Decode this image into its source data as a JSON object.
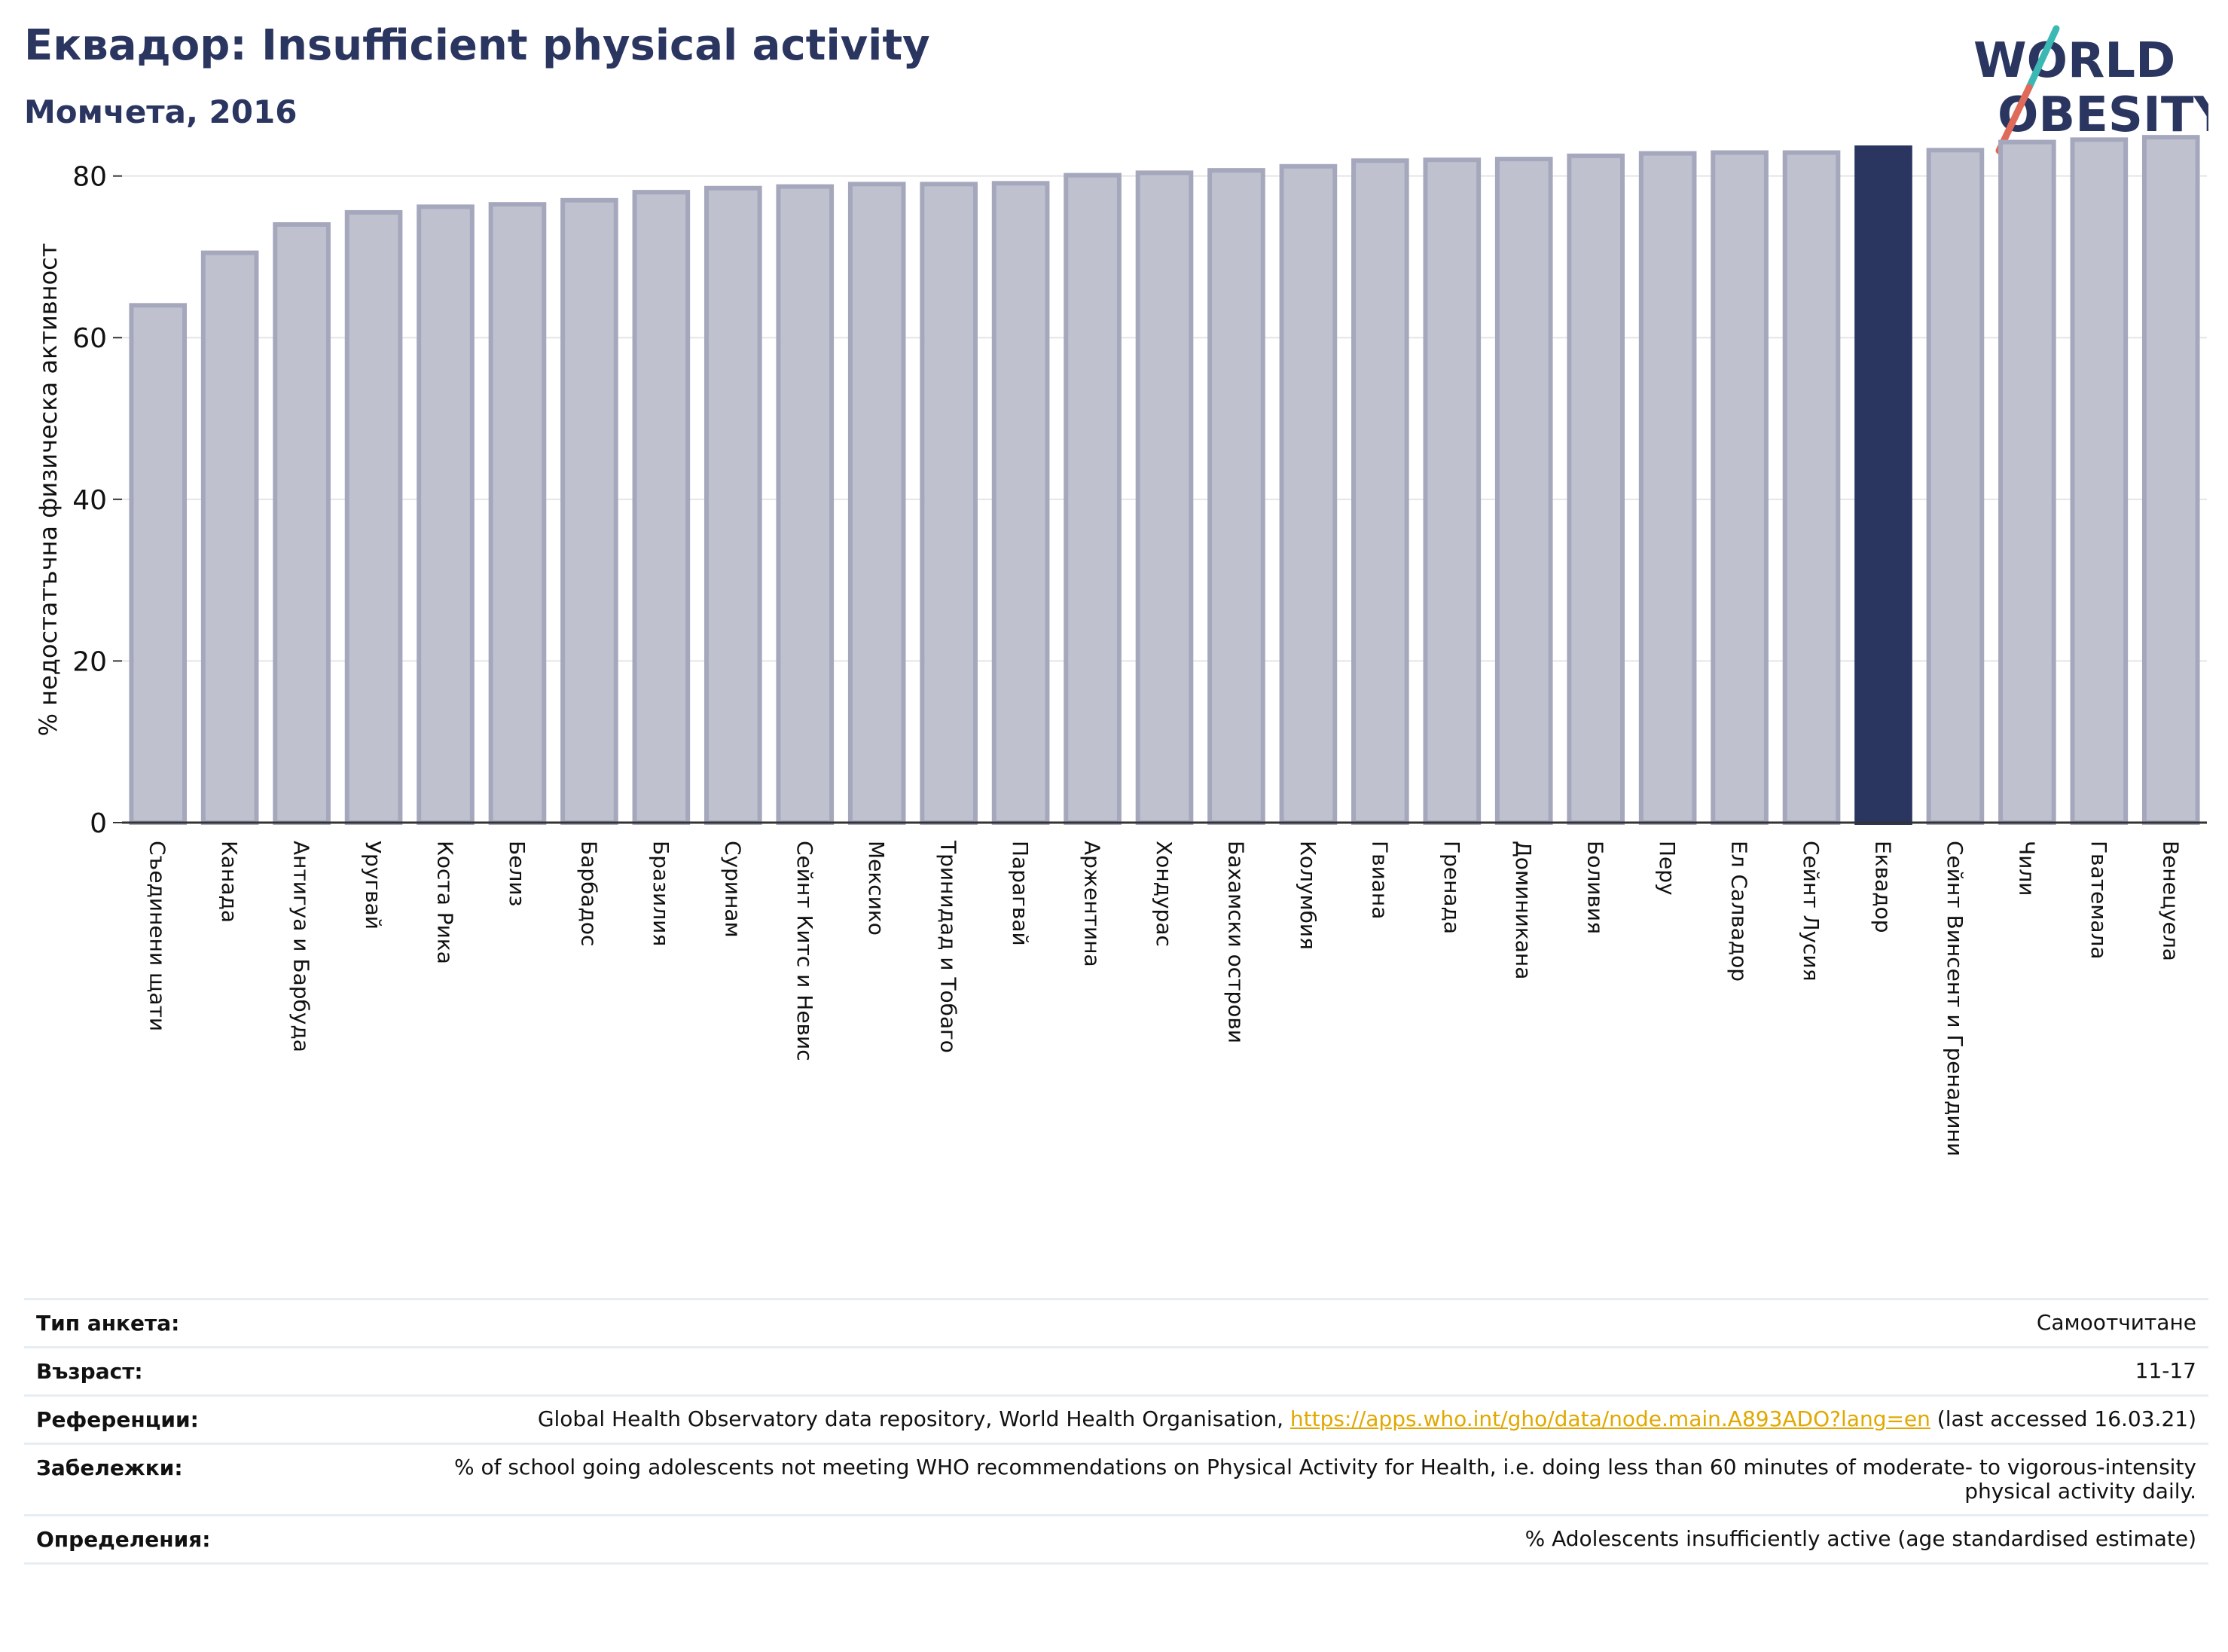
{
  "title": "Еквадор: Insufficient physical activity",
  "subtitle": "Момчета, 2016",
  "logo": {
    "line1": "WORLD",
    "line2": "OBESITY"
  },
  "colors": {
    "bar": "#bfc1cf",
    "bar_border": "#a5a8bd",
    "highlight": "#2a3560",
    "grid": "#e5e5e5",
    "axis": "#333333"
  },
  "chart_data": {
    "type": "bar",
    "categories": [
      "Съединени щати",
      "Канада",
      "Антигуа и Барбуда",
      "Уругвай",
      "Коста Рика",
      "Белиз",
      "Барбадос",
      "Бразилия",
      "Суринам",
      "Сейнт Китс и Невис",
      "Мексико",
      "Тринидад и Тобаго",
      "Парагвай",
      "Аржентина",
      "Хондурас",
      "Бахамски острови",
      "Колумбия",
      "Гвиана",
      "Гренада",
      "Доминикана",
      "Боливия",
      "Перу",
      "Ел Салвадор",
      "Сейнт Лусия",
      "Еквадор",
      "Сейнт Винсент и Гренадини",
      "Чили",
      "Гватемала",
      "Венецуела"
    ],
    "values": [
      64.0,
      70.5,
      74.0,
      75.5,
      76.2,
      76.5,
      77.0,
      78.0,
      78.5,
      78.7,
      79.0,
      79.0,
      79.1,
      80.1,
      80.4,
      80.7,
      81.2,
      81.9,
      82.0,
      82.1,
      82.5,
      82.8,
      82.9,
      82.9,
      83.5,
      83.2,
      84.2,
      84.5,
      84.8
    ],
    "highlight": "Еквадор",
    "ylabel": "% недостатъчна физическа активност",
    "ylim": [
      0,
      85
    ],
    "yticks": [
      0,
      20,
      40,
      60,
      80
    ],
    "grid": true
  },
  "info": [
    {
      "key": "Тип анкета:",
      "value": "Самоотчитане"
    },
    {
      "key": "Възраст:",
      "value": "11-17"
    },
    {
      "key": "Референции:",
      "value_prefix": "Global Health Observatory data repository, World Health Organisation, ",
      "link": "https://apps.who.int/gho/data/node.main.A893ADO?lang=en",
      "value_suffix": " (last accessed 16.03.21)"
    },
    {
      "key": "Забележки:",
      "value": "% of school going adolescents not meeting WHO recommendations on Physical Activity for Health, i.e. doing less than 60 minutes of moderate- to vigorous-intensity physical activity daily."
    },
    {
      "key": "Определения:",
      "value": "% Adolescents insufficiently active (age standardised estimate)"
    }
  ]
}
